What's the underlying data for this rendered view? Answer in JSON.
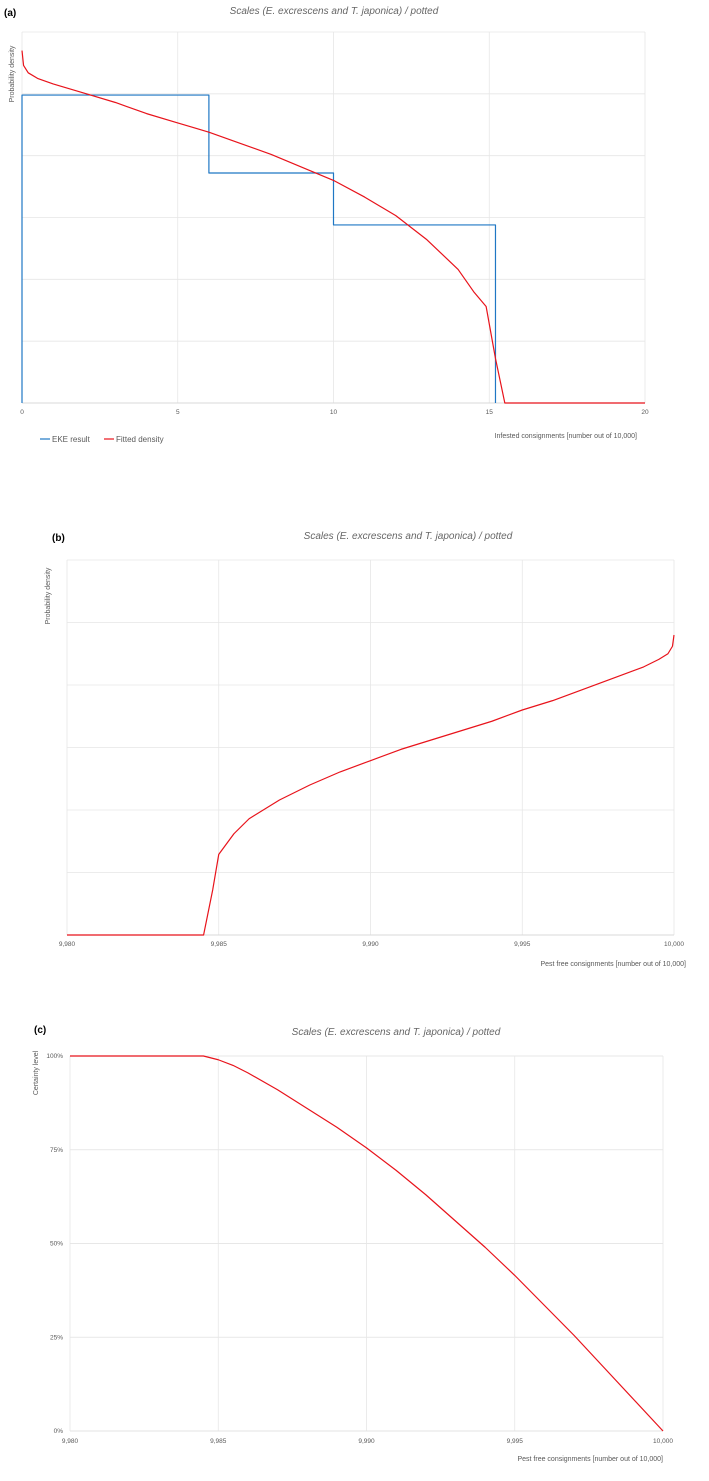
{
  "chart_data": [
    {
      "panel_label": "(a)",
      "type": "line",
      "title": "Scales (E. excrescens and T. japonica) / potted",
      "xlabel": "Infested consignments [number out of 10,000]",
      "ylabel": "Probability density",
      "xlim": [
        0,
        20
      ],
      "ylim": [
        0,
        1
      ],
      "x_ticks": [
        0,
        5,
        10,
        15,
        20
      ],
      "x_tick_labels": [
        "0",
        "5",
        "10",
        "15",
        "20"
      ],
      "grid": true,
      "legend_position": "bottom-left",
      "legend": [
        "EKE result",
        "Fitted density"
      ],
      "series": [
        {
          "name": "EKE result",
          "color": "#1f77c4",
          "style": "step",
          "x": [
            0,
            0,
            6,
            6,
            10,
            10,
            15.2,
            15.2
          ],
          "y": [
            0,
            0.83,
            0.83,
            0.62,
            0.62,
            0.48,
            0.48,
            0
          ]
        },
        {
          "name": "Fitted density",
          "color": "#e8131b",
          "style": "line",
          "x": [
            0,
            0.05,
            0.2,
            0.5,
            1,
            2,
            3,
            4,
            5,
            6,
            7,
            8,
            9,
            10,
            11,
            12,
            13,
            14,
            14.5,
            14.9,
            15.2,
            15.5,
            16,
            18,
            20
          ],
          "y": [
            0.95,
            0.91,
            0.89,
            0.875,
            0.86,
            0.835,
            0.81,
            0.78,
            0.755,
            0.73,
            0.7,
            0.67,
            0.635,
            0.6,
            0.555,
            0.505,
            0.44,
            0.36,
            0.3,
            0.26,
            0.12,
            0,
            0,
            0,
            0
          ]
        }
      ]
    },
    {
      "panel_label": "(b)",
      "type": "line",
      "title": "Scales (E. excrescens and T. japonica) / potted",
      "xlabel": "Pest free consignments [number out of 10,000]",
      "ylabel": "Probability density",
      "xlim": [
        9980,
        10000
      ],
      "ylim": [
        0,
        1
      ],
      "x_ticks": [
        9980,
        9985,
        9990,
        9995,
        10000
      ],
      "x_tick_labels": [
        "9,980",
        "9,985",
        "9,990",
        "9,995",
        "10,000"
      ],
      "grid": true,
      "series": [
        {
          "name": "Fitted density",
          "color": "#e8131b",
          "style": "line",
          "x": [
            9980,
            9984,
            9984.5,
            9984.8,
            9985,
            9985.5,
            9986,
            9987,
            9988,
            9989,
            9990,
            9991,
            9992,
            9993,
            9994,
            9995,
            9996,
            9997,
            9998,
            9999,
            9999.5,
            9999.8,
            9999.95,
            10000
          ],
          "y": [
            0,
            0,
            0,
            0.12,
            0.215,
            0.27,
            0.31,
            0.36,
            0.4,
            0.435,
            0.465,
            0.495,
            0.52,
            0.545,
            0.57,
            0.6,
            0.625,
            0.655,
            0.685,
            0.715,
            0.735,
            0.75,
            0.77,
            0.8
          ]
        }
      ]
    },
    {
      "panel_label": "(c)",
      "type": "line",
      "title": "Scales (E. excrescens and T. japonica) / potted",
      "xlabel": "Pest free consignments [number out of 10,000]",
      "ylabel": "Certainty level",
      "xlim": [
        9980,
        10000
      ],
      "ylim": [
        0,
        1
      ],
      "x_ticks": [
        9980,
        9985,
        9990,
        9995,
        10000
      ],
      "x_tick_labels": [
        "9,980",
        "9,985",
        "9,990",
        "9,995",
        "10,000"
      ],
      "y_ticks": [
        0,
        0.25,
        0.5,
        0.75,
        1
      ],
      "y_tick_labels": [
        "0%",
        "25%",
        "50%",
        "75%",
        "100%"
      ],
      "grid": true,
      "series": [
        {
          "name": "Certainty level",
          "color": "#e8131b",
          "style": "line",
          "x": [
            9980,
            9984,
            9984.5,
            9985,
            9985.5,
            9986,
            9987,
            9988,
            9989,
            9990,
            9991,
            9992,
            9993,
            9994,
            9995,
            9996,
            9997,
            9998,
            9999,
            10000
          ],
          "y": [
            1,
            1,
            1,
            0.99,
            0.975,
            0.955,
            0.91,
            0.86,
            0.81,
            0.755,
            0.695,
            0.63,
            0.56,
            0.49,
            0.415,
            0.335,
            0.255,
            0.17,
            0.085,
            0
          ]
        }
      ]
    }
  ]
}
